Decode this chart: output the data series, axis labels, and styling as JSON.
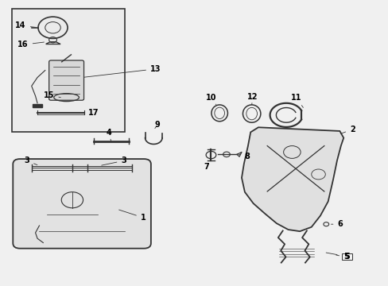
{
  "background_color": "#f0f0f0",
  "line_color": "#333333",
  "text_color": "#000000",
  "fig_width": 4.89,
  "fig_height": 3.6,
  "dpi": 100
}
